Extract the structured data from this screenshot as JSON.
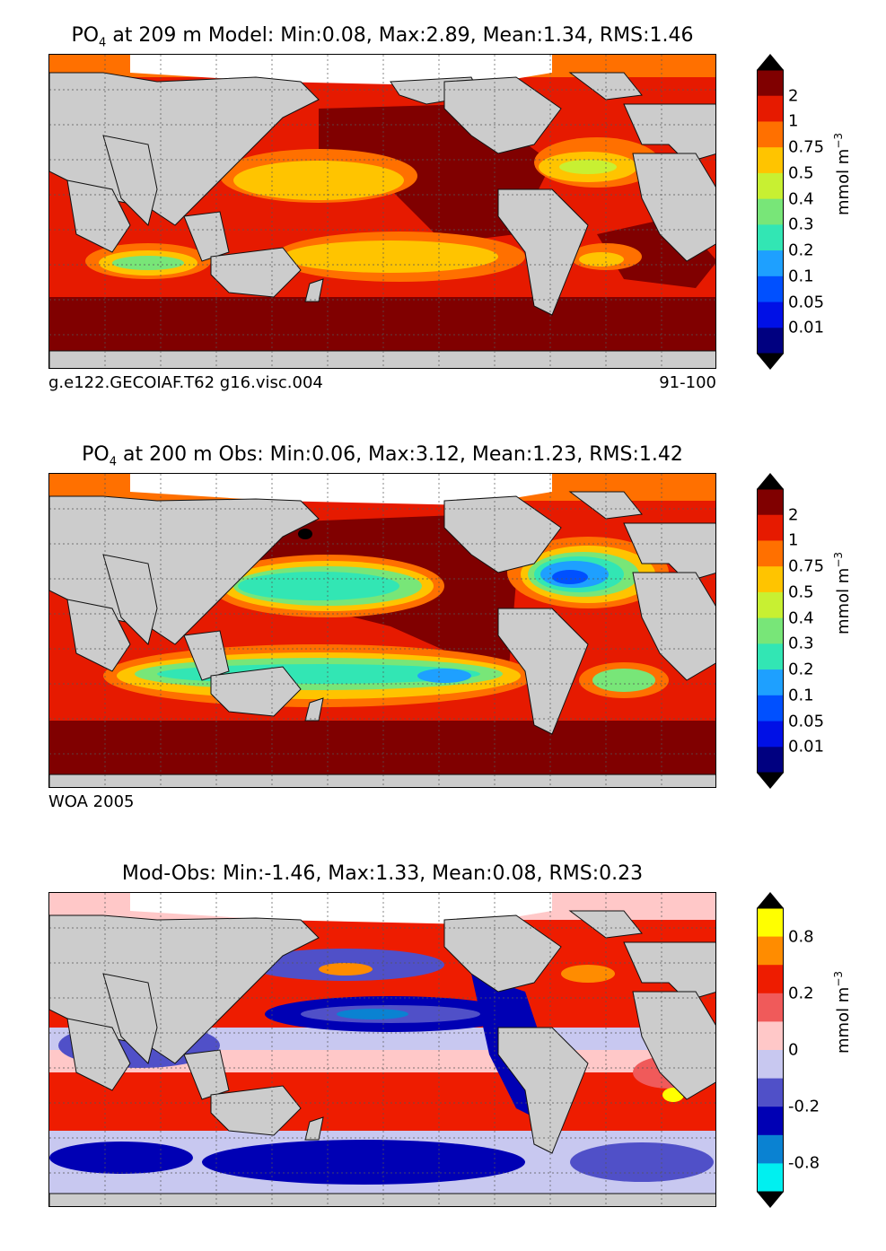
{
  "panels": [
    {
      "title_prefix": "PO",
      "title_sub": "4",
      "title_rest": " at 209 m Model: Min:0.08, Max:2.89, Mean:1.34, RMS:1.46",
      "footer_left": "g.e122.GECOIAF.T62 g16.visc.004",
      "footer_right": "91-100",
      "colorbar": {
        "ticks": [
          "2",
          "1",
          "0.75",
          "0.5",
          "0.4",
          "0.3",
          "0.2",
          "0.1",
          "0.05",
          "0.01"
        ],
        "colors": [
          "#800000",
          "#e61a00",
          "#ff7000",
          "#ffc400",
          "#c8f032",
          "#78e678",
          "#32e6b4",
          "#1ea0ff",
          "#0050ff",
          "#0010e6",
          "#000080"
        ],
        "unit": "mmol m",
        "unit_sup": "−3"
      }
    },
    {
      "title_prefix": "PO",
      "title_sub": "4",
      "title_rest": " at 200 m Obs: Min:0.06, Max:3.12, Mean:1.23, RMS:1.42",
      "footer_left": "WOA 2005",
      "footer_right": "",
      "colorbar": {
        "ticks": [
          "2",
          "1",
          "0.75",
          "0.5",
          "0.4",
          "0.3",
          "0.2",
          "0.1",
          "0.05",
          "0.01"
        ],
        "colors": [
          "#800000",
          "#e61a00",
          "#ff7000",
          "#ffc400",
          "#c8f032",
          "#78e678",
          "#32e6b4",
          "#1ea0ff",
          "#0050ff",
          "#0010e6",
          "#000080"
        ],
        "unit": "mmol m",
        "unit_sup": "−3"
      }
    },
    {
      "title_prefix": "",
      "title_sub": "",
      "title_rest": "Mod-Obs: Min:-1.46, Max:1.33, Mean:0.08, RMS:0.23",
      "footer_left": "",
      "footer_right": "",
      "colorbar": {
        "ticks": [
          "0.8",
          "0.2",
          "0",
          "-0.2",
          "-0.8"
        ],
        "colors": [
          "#ffff00",
          "#ff8c00",
          "#ee1c00",
          "#f05a5a",
          "#ffc8c8",
          "#c8c8f0",
          "#5050c8",
          "#0000b4",
          "#0a82d2",
          "#00f0f0"
        ],
        "unit": "mmol m",
        "unit_sup": "−3"
      }
    }
  ],
  "map_colors": {
    "land": "#cccccc",
    "ice": "#ffffff",
    "grid": "#555555"
  }
}
